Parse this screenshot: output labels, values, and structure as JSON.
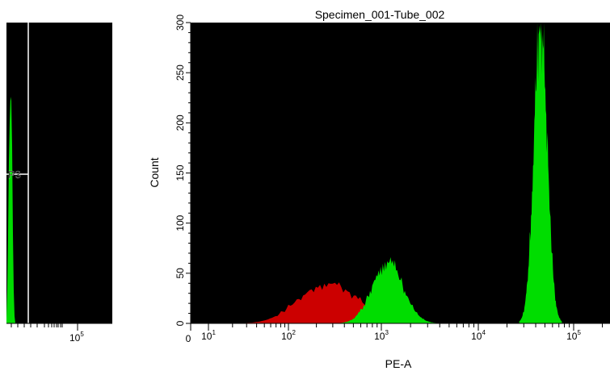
{
  "colors": {
    "background": "#000000",
    "green": "#00dd00",
    "red": "#cc0000",
    "gate_line": "#ffffff"
  },
  "left_panel": {
    "gate_label": "P3",
    "x_tick_label": {
      "base": "10",
      "exp": "5"
    }
  },
  "chart_data": {
    "type": "area",
    "title": "Specimen_001-Tube_002",
    "xlabel": "PE-A",
    "ylabel": "Count",
    "x_scale": "log",
    "ylim": [
      0,
      300
    ],
    "y_ticks": [
      0,
      50,
      100,
      150,
      200,
      250,
      300
    ],
    "x_ticks": [
      {
        "base": "0",
        "exp": ""
      },
      {
        "base": "10",
        "exp": "1"
      },
      {
        "base": "10",
        "exp": "2"
      },
      {
        "base": "10",
        "exp": "3"
      },
      {
        "base": "10",
        "exp": "4"
      },
      {
        "base": "10",
        "exp": "5"
      }
    ],
    "series": [
      {
        "color": "#cc0000",
        "center": 270,
        "peak": 40,
        "width": 0.32
      },
      {
        "color": "#00dd00",
        "center": 1150,
        "peak": 62,
        "width": 0.16
      },
      {
        "color": "#00dd00",
        "center": 45000,
        "peak": 300,
        "width": 0.07
      }
    ]
  }
}
